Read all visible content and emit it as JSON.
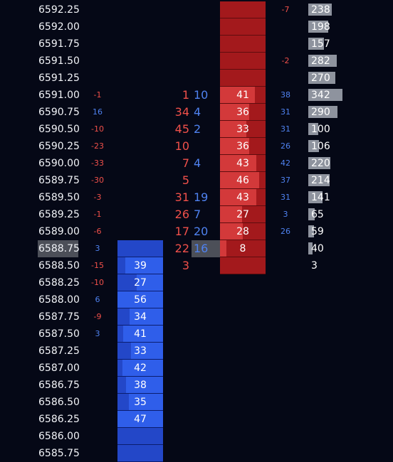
{
  "colors": {
    "background": "#050816",
    "negative_text": "#f0504a",
    "positive_text": "#4f82f0",
    "bid_cell": "#2347c8",
    "bid_bar": "#2f5eea",
    "ask_cell": "#a3191c",
    "ask_bar": "#d3393a",
    "volume_bar": "#8e939e",
    "current_price_highlight": "#4c4f58"
  },
  "ladder": {
    "volume_scale_max": 342,
    "rows": [
      {
        "price": "6592.25",
        "delta": "",
        "bid": "",
        "bid_level": null,
        "sell": "",
        "buy": "",
        "ask": "",
        "ask_level": 0,
        "side": "-7",
        "volume": "238",
        "volume_level": 0.696
      },
      {
        "price": "6592.00",
        "delta": "",
        "bid": "",
        "bid_level": null,
        "sell": "",
        "buy": "",
        "ask": "",
        "ask_level": 0,
        "side": "",
        "volume": "198",
        "volume_level": 0.579
      },
      {
        "price": "6591.75",
        "delta": "",
        "bid": "",
        "bid_level": null,
        "sell": "",
        "buy": "",
        "ask": "",
        "ask_level": 0,
        "side": "",
        "volume": "157",
        "volume_level": 0.459
      },
      {
        "price": "6591.50",
        "delta": "",
        "bid": "",
        "bid_level": null,
        "sell": "",
        "buy": "",
        "ask": "",
        "ask_level": 0,
        "side": "-2",
        "volume": "282",
        "volume_level": 0.825
      },
      {
        "price": "6591.25",
        "delta": "",
        "bid": "",
        "bid_level": null,
        "sell": "",
        "buy": "",
        "ask": "",
        "ask_level": 0,
        "side": "",
        "volume": "270",
        "volume_level": 0.789
      },
      {
        "price": "6591.00",
        "delta": "-1",
        "bid": "",
        "bid_level": null,
        "sell": "1",
        "buy": "10",
        "ask": "41",
        "ask_level": 0.76,
        "side": "38",
        "volume": "342",
        "volume_level": 1.0
      },
      {
        "price": "6590.75",
        "delta": "16",
        "bid": "",
        "bid_level": null,
        "sell": "34",
        "buy": "4",
        "ask": "36",
        "ask_level": 0.64,
        "side": "31",
        "volume": "290",
        "volume_level": 0.848
      },
      {
        "price": "6590.50",
        "delta": "-10",
        "bid": "",
        "bid_level": null,
        "sell": "45",
        "buy": "2",
        "ask": "33",
        "ask_level": 0.58,
        "side": "31",
        "volume": "100",
        "volume_level": 0.292
      },
      {
        "price": "6590.25",
        "delta": "-23",
        "bid": "",
        "bid_level": null,
        "sell": "10",
        "buy": "",
        "ask": "36",
        "ask_level": 0.64,
        "side": "26",
        "volume": "106",
        "volume_level": 0.31
      },
      {
        "price": "6590.00",
        "delta": "-33",
        "bid": "",
        "bid_level": null,
        "sell": "7",
        "buy": "4",
        "ask": "43",
        "ask_level": 0.8,
        "side": "42",
        "volume": "220",
        "volume_level": 0.643
      },
      {
        "price": "6589.75",
        "delta": "-30",
        "bid": "",
        "bid_level": null,
        "sell": "5",
        "buy": "",
        "ask": "46",
        "ask_level": 0.86,
        "side": "37",
        "volume": "214",
        "volume_level": 0.626
      },
      {
        "price": "6589.50",
        "delta": "-3",
        "bid": "",
        "bid_level": null,
        "sell": "31",
        "buy": "19",
        "ask": "43",
        "ask_level": 0.8,
        "side": "31",
        "volume": "141",
        "volume_level": 0.412
      },
      {
        "price": "6589.25",
        "delta": "-1",
        "bid": "",
        "bid_level": null,
        "sell": "26",
        "buy": "7",
        "ask": "27",
        "ask_level": 0.48,
        "side": "3",
        "volume": "65",
        "volume_level": 0.19
      },
      {
        "price": "6589.00",
        "delta": "-6",
        "bid": "",
        "bid_level": null,
        "sell": "17",
        "buy": "20",
        "ask": "28",
        "ask_level": 0.5,
        "side": "26",
        "volume": "59",
        "volume_level": 0.173
      },
      {
        "price": "6588.75",
        "current": true,
        "delta": "3",
        "bid": "",
        "bid_level": 0,
        "sell": "22",
        "buy": "16",
        "ask": "8",
        "ask_level": 0.14,
        "side": "",
        "volume": "40",
        "volume_level": 0.117
      },
      {
        "price": "6588.50",
        "delta": "-15",
        "bid": "39",
        "bid_level": 0.83,
        "sell": "3",
        "buy": "",
        "ask": "",
        "ask_level": 0,
        "side": "",
        "volume": "3",
        "volume_level": 0
      },
      {
        "price": "6588.25",
        "delta": "-10",
        "bid": "27",
        "bid_level": 0.58,
        "sell": "",
        "buy": "",
        "ask": "",
        "ask_level": null,
        "side": "",
        "volume": "",
        "volume_level": 0
      },
      {
        "price": "6588.00",
        "delta": "6",
        "bid": "56",
        "bid_level": 1.0,
        "sell": "",
        "buy": "",
        "ask": "",
        "ask_level": null,
        "side": "",
        "volume": "",
        "volume_level": 0
      },
      {
        "price": "6587.75",
        "delta": "-9",
        "bid": "34",
        "bid_level": 0.73,
        "sell": "",
        "buy": "",
        "ask": "",
        "ask_level": null,
        "side": "",
        "volume": "",
        "volume_level": 0
      },
      {
        "price": "6587.50",
        "delta": "3",
        "bid": "41",
        "bid_level": 0.87,
        "sell": "",
        "buy": "",
        "ask": "",
        "ask_level": null,
        "side": "",
        "volume": "",
        "volume_level": 0
      },
      {
        "price": "6587.25",
        "delta": "",
        "bid": "33",
        "bid_level": 0.7,
        "sell": "",
        "buy": "",
        "ask": "",
        "ask_level": null,
        "side": "",
        "volume": "",
        "volume_level": 0
      },
      {
        "price": "6587.00",
        "delta": "",
        "bid": "42",
        "bid_level": 0.89,
        "sell": "",
        "buy": "",
        "ask": "",
        "ask_level": null,
        "side": "",
        "volume": "",
        "volume_level": 0
      },
      {
        "price": "6586.75",
        "delta": "",
        "bid": "38",
        "bid_level": 0.81,
        "sell": "",
        "buy": "",
        "ask": "",
        "ask_level": null,
        "side": "",
        "volume": "",
        "volume_level": 0
      },
      {
        "price": "6586.50",
        "delta": "",
        "bid": "35",
        "bid_level": 0.75,
        "sell": "",
        "buy": "",
        "ask": "",
        "ask_level": null,
        "side": "",
        "volume": "",
        "volume_level": 0
      },
      {
        "price": "6586.25",
        "delta": "",
        "bid": "47",
        "bid_level": 1.0,
        "sell": "",
        "buy": "",
        "ask": "",
        "ask_level": null,
        "side": "",
        "volume": "",
        "volume_level": 0
      },
      {
        "price": "6586.00",
        "delta": "",
        "bid": "",
        "bid_level": 0,
        "sell": "",
        "buy": "",
        "ask": "",
        "ask_level": null,
        "side": "",
        "volume": "",
        "volume_level": 0
      },
      {
        "price": "6585.75",
        "delta": "",
        "bid": "",
        "bid_level": 0,
        "sell": "",
        "buy": "",
        "ask": "",
        "ask_level": null,
        "side": "",
        "volume": "",
        "volume_level": 0
      }
    ]
  }
}
